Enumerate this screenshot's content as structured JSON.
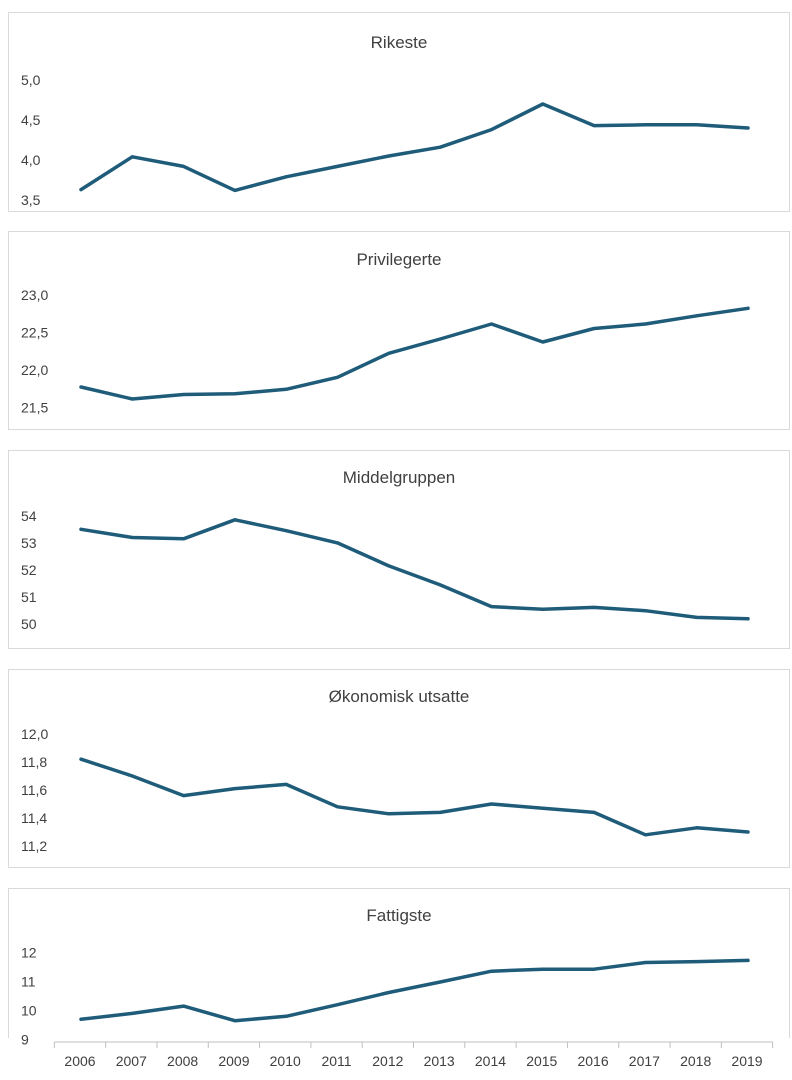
{
  "chart_data": [
    {
      "type": "line",
      "title": "Rikeste",
      "yticks": [
        3.5,
        4.0,
        4.5,
        5.0
      ],
      "ytick_labels": [
        "3,5",
        "4,0",
        "4,5",
        "5,0"
      ],
      "ylim": [
        3.45,
        5.05
      ],
      "series_color": "#1f5c7a",
      "x": [
        2006,
        2007,
        2008,
        2009,
        2010,
        2011,
        2012,
        2013,
        2014,
        2015,
        2016,
        2017,
        2018,
        2019
      ],
      "values": [
        3.63,
        4.04,
        3.92,
        3.62,
        3.79,
        3.92,
        4.05,
        4.16,
        4.38,
        4.7,
        4.43,
        4.44,
        4.44,
        4.4
      ]
    },
    {
      "type": "line",
      "title": "Privilegerte",
      "yticks": [
        21.5,
        22.0,
        22.5,
        23.0
      ],
      "ytick_labels": [
        "21,5",
        "22,0",
        "22,5",
        "23,0"
      ],
      "ylim": [
        21.45,
        23.05
      ],
      "series_color": "#1f5c7a",
      "x": [
        2006,
        2007,
        2008,
        2009,
        2010,
        2011,
        2012,
        2013,
        2014,
        2015,
        2016,
        2017,
        2018,
        2019
      ],
      "values": [
        21.77,
        21.61,
        21.67,
        21.68,
        21.74,
        21.9,
        22.22,
        22.41,
        22.61,
        22.37,
        22.55,
        22.61,
        22.72,
        22.82
      ]
    },
    {
      "type": "line",
      "title": "Middelgruppen",
      "yticks": [
        50,
        51,
        52,
        53,
        54
      ],
      "ytick_labels": [
        "50",
        "51",
        "52",
        "53",
        "54"
      ],
      "ylim": [
        49.75,
        54.25
      ],
      "series_color": "#1f5c7a",
      "x": [
        2006,
        2007,
        2008,
        2009,
        2010,
        2011,
        2012,
        2013,
        2014,
        2015,
        2016,
        2017,
        2018,
        2019
      ],
      "values": [
        53.5,
        53.2,
        53.15,
        53.85,
        53.45,
        53.0,
        52.15,
        51.45,
        50.65,
        50.55,
        50.62,
        50.5,
        50.25,
        50.2
      ]
    },
    {
      "type": "line",
      "title": "Økonomisk utsatte",
      "yticks": [
        11.2,
        11.4,
        11.6,
        11.8,
        12.0
      ],
      "ytick_labels": [
        "11,2",
        "11,4",
        "11,6",
        "11,8",
        "12,0"
      ],
      "ylim": [
        11.15,
        12.05
      ],
      "series_color": "#1f5c7a",
      "x": [
        2006,
        2007,
        2008,
        2009,
        2010,
        2011,
        2012,
        2013,
        2014,
        2015,
        2016,
        2017,
        2018,
        2019
      ],
      "values": [
        11.82,
        11.7,
        11.56,
        11.61,
        11.64,
        11.48,
        11.43,
        11.44,
        11.5,
        11.47,
        11.44,
        11.28,
        11.33,
        11.3
      ]
    },
    {
      "type": "line",
      "title": "Fattigste",
      "yticks": [
        9,
        10,
        11,
        12
      ],
      "ytick_labels": [
        "9",
        "10",
        "11",
        "12"
      ],
      "ylim": [
        8.85,
        12.25
      ],
      "series_color": "#1f5c7a",
      "x": [
        2006,
        2007,
        2008,
        2009,
        2010,
        2011,
        2012,
        2013,
        2014,
        2015,
        2016,
        2017,
        2018,
        2019
      ],
      "values": [
        9.7,
        9.9,
        10.15,
        9.65,
        9.8,
        10.2,
        10.62,
        10.98,
        11.35,
        11.42,
        11.42,
        11.65,
        11.68,
        11.72
      ]
    }
  ],
  "x_axis": {
    "tick_labels": [
      "2006",
      "2007",
      "2008",
      "2009",
      "2010",
      "2011",
      "2012",
      "2013",
      "2014",
      "2015",
      "2016",
      "2017",
      "2018",
      "2019"
    ]
  }
}
